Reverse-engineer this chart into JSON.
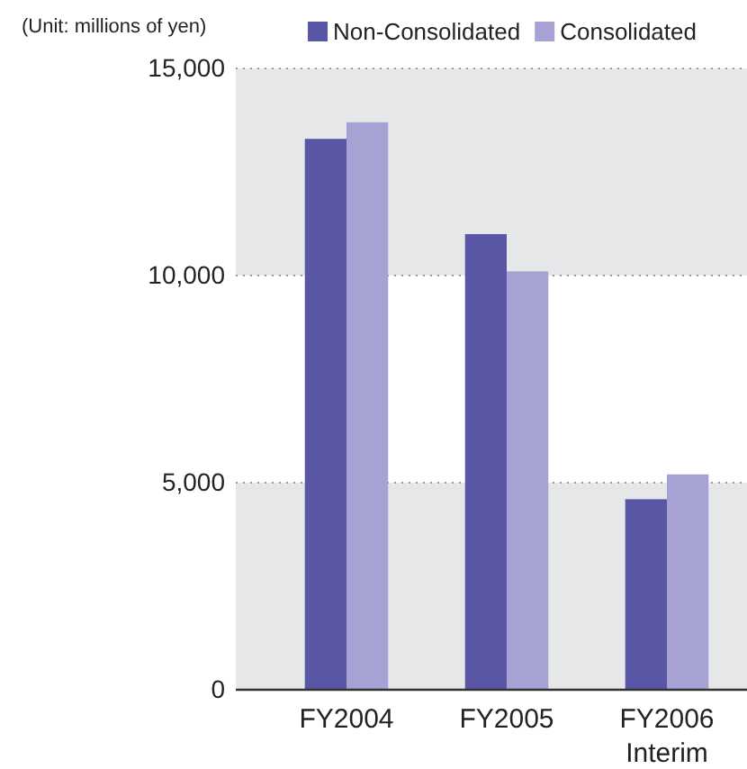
{
  "chart_data": {
    "type": "bar",
    "ylabel": "(Unit: millions of yen)",
    "categories": [
      "FY2004",
      "FY2005",
      "FY2006\nInterim"
    ],
    "series": [
      {
        "name": "Non-Consolidated",
        "color": "#5a56a6",
        "values": [
          13300,
          11000,
          4600
        ]
      },
      {
        "name": "Consolidated",
        "color": "#a6a3d4",
        "values": [
          13700,
          10100,
          5200
        ]
      }
    ],
    "ylim": [
      0,
      15000
    ],
    "yticks": [
      {
        "value": 0,
        "label": "0"
      },
      {
        "value": 5000,
        "label": "5,000"
      },
      {
        "value": 10000,
        "label": "10,000"
      },
      {
        "value": 15000,
        "label": "15,000"
      }
    ],
    "grid": "y",
    "legend": "top"
  }
}
